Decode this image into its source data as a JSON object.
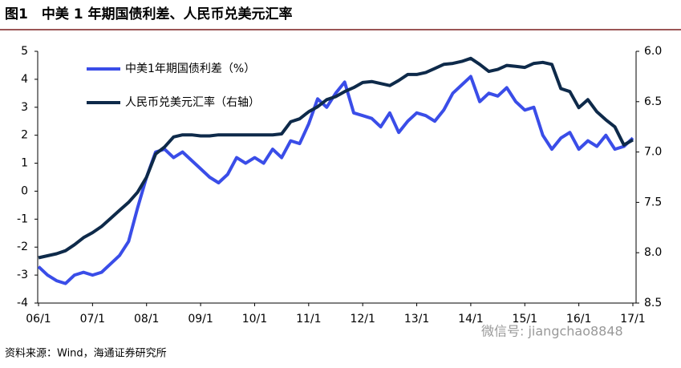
{
  "title": "图1　中美 1 年期国债利差、人民币兑美元汇率",
  "source": "资料来源：Wind，海通证券研究所",
  "watermark": "微信号: jiangchao8848",
  "chart_data": {
    "type": "line",
    "x": [
      "06/1",
      null,
      null,
      null,
      null,
      null,
      "07/1",
      null,
      null,
      null,
      null,
      null,
      "08/1",
      null,
      null,
      null,
      null,
      null,
      "09/1",
      null,
      null,
      null,
      null,
      null,
      "10/1",
      null,
      null,
      null,
      null,
      null,
      "11/1",
      null,
      null,
      null,
      null,
      null,
      "12/1",
      null,
      null,
      null,
      null,
      null,
      "13/1",
      null,
      null,
      null,
      null,
      null,
      "14/1",
      null,
      null,
      null,
      null,
      null,
      "15/1",
      null,
      null,
      null,
      null,
      null,
      "16/1",
      null,
      null,
      null,
      null,
      null,
      "17/1"
    ],
    "series": [
      {
        "name": "中美1年期国债利差（%）",
        "color": "#3a4de8",
        "values": [
          -2.7,
          -3.0,
          -3.2,
          -3.3,
          -3.0,
          -2.9,
          -3.0,
          -2.9,
          -2.6,
          -2.3,
          -1.8,
          -0.6,
          0.5,
          1.4,
          1.5,
          1.2,
          1.4,
          1.1,
          0.8,
          0.5,
          0.3,
          0.6,
          1.2,
          1.0,
          1.2,
          1.0,
          1.5,
          1.2,
          1.8,
          1.7,
          2.4,
          3.3,
          3.0,
          3.5,
          3.9,
          2.8,
          2.7,
          2.6,
          2.3,
          2.8,
          2.1,
          2.5,
          2.8,
          2.7,
          2.5,
          2.9,
          3.5,
          3.8,
          4.1,
          3.2,
          3.5,
          3.4,
          3.7,
          3.2,
          2.9,
          3.0,
          2.0,
          1.5,
          1.9,
          2.1,
          1.5,
          1.8,
          1.6,
          2.0,
          1.5,
          1.6,
          1.9
        ]
      },
      {
        "name": "人民币兑美元汇率（右轴）",
        "color": "#0e2a4a",
        "axis": "y2",
        "values": [
          8.05,
          8.03,
          8.01,
          7.98,
          7.92,
          7.85,
          7.8,
          7.74,
          7.66,
          7.58,
          7.5,
          7.4,
          7.25,
          7.02,
          6.95,
          6.85,
          6.83,
          6.83,
          6.84,
          6.84,
          6.83,
          6.83,
          6.83,
          6.83,
          6.83,
          6.83,
          6.83,
          6.82,
          6.7,
          6.67,
          6.6,
          6.55,
          6.48,
          6.45,
          6.4,
          6.36,
          6.31,
          6.3,
          6.32,
          6.34,
          6.29,
          6.23,
          6.23,
          6.21,
          6.17,
          6.13,
          6.12,
          6.1,
          6.07,
          6.13,
          6.2,
          6.18,
          6.14,
          6.15,
          6.16,
          6.12,
          6.11,
          6.13,
          6.37,
          6.4,
          6.56,
          6.48,
          6.6,
          6.68,
          6.75,
          6.93,
          6.88
        ]
      }
    ],
    "ylim": [
      -4,
      5
    ],
    "yticks": [
      -4,
      -3,
      -2,
      -1,
      0,
      1,
      2,
      3,
      4,
      5
    ],
    "y2lim": [
      8.5,
      6
    ],
    "y2ticks": [
      {
        "value": 6,
        "label": "6.0"
      },
      6.5,
      {
        "value": 7,
        "label": "7.0"
      },
      7.5,
      {
        "value": 8,
        "label": "8.0"
      },
      8.5
    ],
    "legend": "upper-left"
  }
}
